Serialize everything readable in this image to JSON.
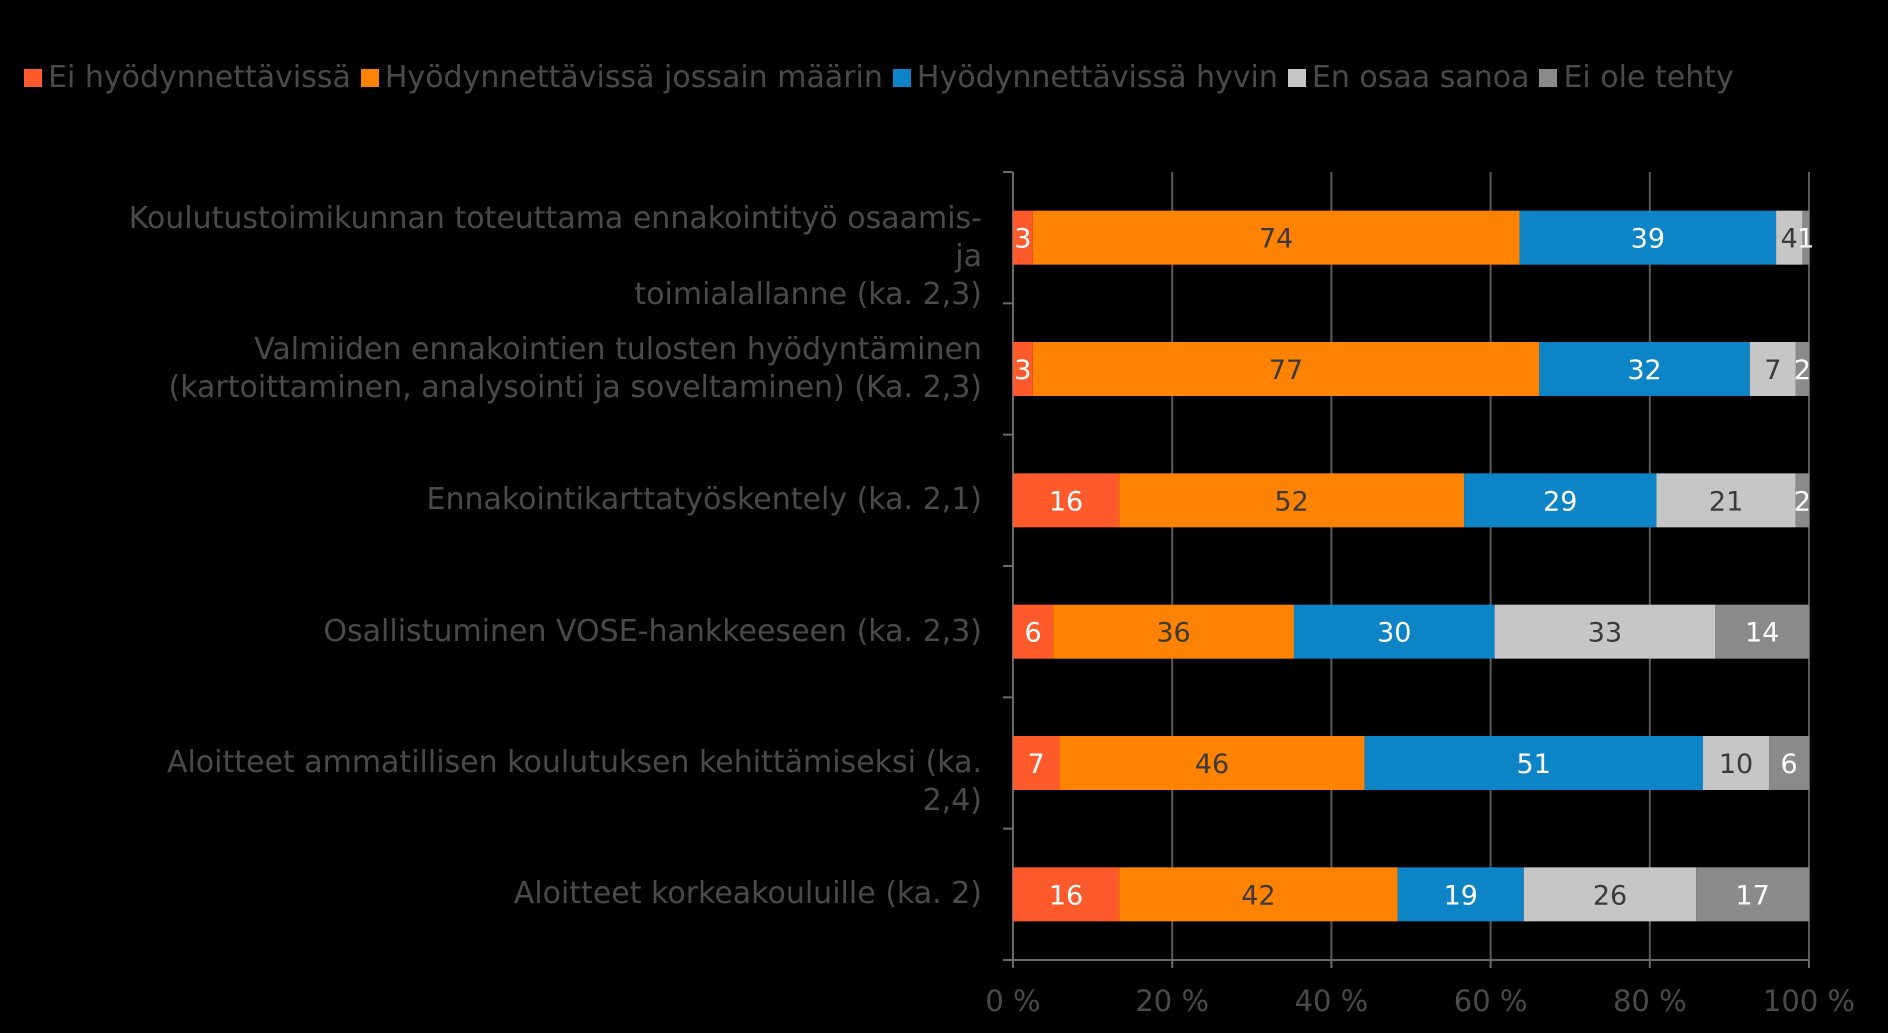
{
  "chart_data": {
    "type": "bar",
    "orientation": "horizontal",
    "stacked": "percent",
    "categories": [
      "Koulutustoimikunnan toteuttama ennakointityö osaamis- ja toimialallanne (ka. 2,3)",
      "Valmiiden ennakointien tulosten hyödyntäminen (kartoittaminen, analysointi ja soveltaminen) (Ka. 2,3)",
      "Ennakointikarttatyöskentely (ka. 2,1)",
      "Osallistuminen VOSE-hankkeeseen (ka. 2,3)",
      "Aloitteet ammatillisen koulutuksen kehittämiseksi (ka. 2,4)",
      "Aloitteet korkeakouluille (ka. 2)"
    ],
    "category_lines": [
      [
        "Koulutustoimikunnan toteuttama ennakointityö osaamis- ja",
        "toimialallanne (ka. 2,3)"
      ],
      [
        "Valmiiden ennakointien tulosten hyödyntäminen",
        "(kartoittaminen, analysointi ja soveltaminen) (Ka. 2,3)"
      ],
      [
        "Ennakointikarttatyöskentely (ka. 2,1)"
      ],
      [
        "Osallistuminen VOSE-hankkeeseen (ka. 2,3)"
      ],
      [
        "Aloitteet ammatillisen koulutuksen kehittämiseksi (ka. 2,4)"
      ],
      [
        "Aloitteet korkeakouluille (ka. 2)"
      ]
    ],
    "series": [
      {
        "name": "Ei hyödynnettävissä",
        "color": "#ff5a2b",
        "label_color": "#ffffff",
        "values": [
          3,
          3,
          16,
          6,
          7,
          16
        ]
      },
      {
        "name": "Hyödynnettävissä jossain määrin",
        "color": "#ff8200",
        "label_color": "#3a3a3a",
        "values": [
          74,
          77,
          52,
          36,
          46,
          42
        ]
      },
      {
        "name": "Hyödynnettävissä hyvin",
        "color": "#0c84c6",
        "label_color": "#ffffff",
        "values": [
          39,
          32,
          29,
          30,
          51,
          19
        ]
      },
      {
        "name": "En osaa sanoa",
        "color": "#c6c6c6",
        "label_color": "#3a3a3a",
        "values": [
          4,
          7,
          21,
          33,
          10,
          26
        ]
      },
      {
        "name": "Ei ole tehty",
        "color": "#8a8a8a",
        "label_color": "#ffffff",
        "values": [
          1,
          2,
          2,
          14,
          6,
          17
        ]
      }
    ],
    "xlim": [
      0,
      100
    ],
    "x_ticks": [
      "0 %",
      "20 %",
      "40 %",
      "60 %",
      "80 %",
      "100 %"
    ],
    "grid": true,
    "legend_position": "top-left"
  }
}
